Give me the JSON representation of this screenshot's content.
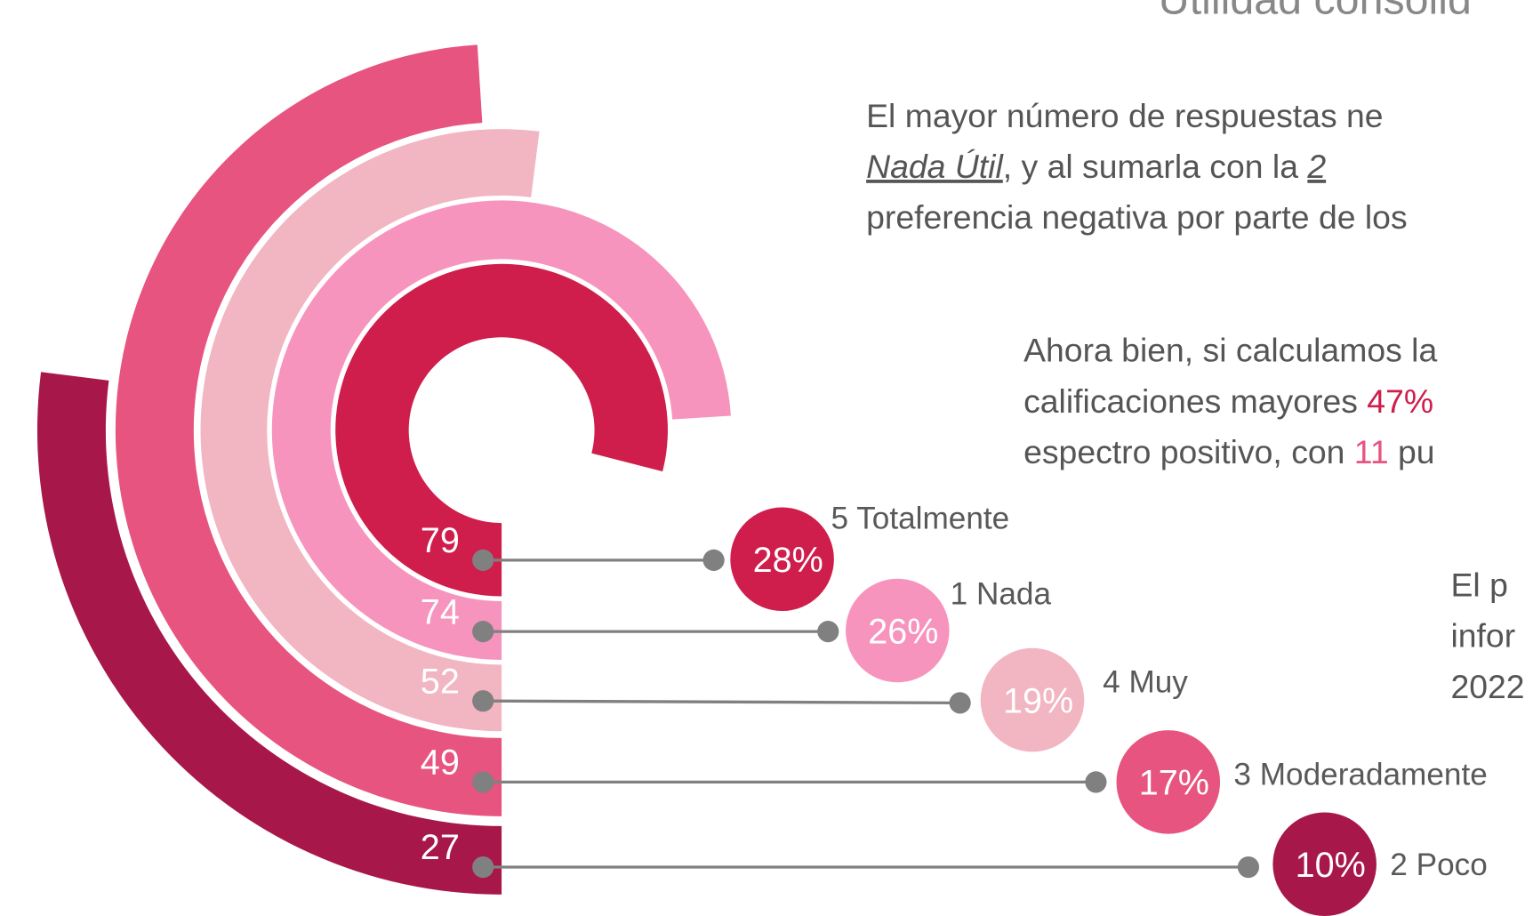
{
  "chart_data": {
    "type": "radial_bar",
    "title": "Utilidad consolid",
    "categories": [
      "5 Totalmente",
      "1 Nada",
      "4 Muy",
      "3 Moderadamente",
      "2 Poco"
    ],
    "values": [
      79,
      74,
      52,
      49,
      27
    ],
    "shares": [
      28,
      26,
      19,
      17,
      10
    ],
    "share_labels": [
      "28%",
      "26%",
      "19%",
      "17%",
      "10%"
    ],
    "colors": [
      "#CF1D4C",
      "#F794BD",
      "#F2B5C2",
      "#E75480",
      "#A8174A"
    ]
  },
  "text": {
    "paragraph_1": [
      "El mayor número de respuestas ne",
      "Nada Útil",
      ", y al sumarla con la ",
      "2",
      "preferencia negativa por parte de los"
    ],
    "paragraph_2": [
      "Ahora bien, si calculamos la",
      "calificaciones mayores ",
      "47%",
      "espectro positivo, con ",
      "11",
      " pu"
    ],
    "paragraph_3": [
      "El p",
      "infor",
      "2022"
    ]
  }
}
